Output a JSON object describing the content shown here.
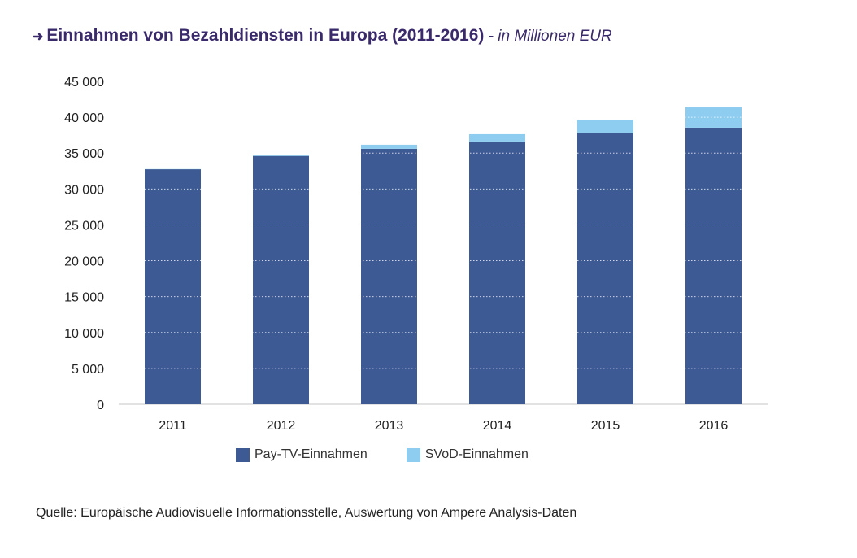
{
  "title": {
    "arrow": "➜",
    "main": "Einnahmen von Bezahldiensten in Europa (2011-2016)",
    "subtitle": " - in Millionen EUR"
  },
  "colors": {
    "pay_tv": "#3d5a94",
    "svod": "#8ecdf0",
    "title": "#3a2a6b",
    "gridline": "#d9d9d9"
  },
  "chart_data": {
    "type": "bar",
    "stacked": true,
    "title": "Einnahmen von Bezahldiensten in Europa (2011-2016) - in Millionen EUR",
    "xlabel": "",
    "ylabel": "",
    "categories": [
      "2011",
      "2012",
      "2013",
      "2014",
      "2015",
      "2016"
    ],
    "series": [
      {
        "name": "Pay-TV-Einnahmen",
        "color": "#3d5a94",
        "values": [
          32750,
          34600,
          35600,
          36620,
          37760,
          38550
        ]
      },
      {
        "name": "SVoD-Einnahmen",
        "color": "#8ecdf0",
        "values": [
          30,
          100,
          570,
          1020,
          1810,
          2830
        ]
      }
    ],
    "ylim": [
      0,
      45000
    ],
    "yticks": [
      0,
      5000,
      10000,
      15000,
      20000,
      25000,
      30000,
      35000,
      40000,
      45000
    ],
    "ytick_labels": [
      "0",
      "5 000",
      "10 000",
      "15 000",
      "20 000",
      "25 000",
      "30 000",
      "35 000",
      "40 000",
      "45 000"
    ],
    "grid": "dotted white lines over bars",
    "legend": "bottom-center"
  },
  "legend": {
    "items": [
      {
        "label": "Pay-TV-Einnahmen"
      },
      {
        "label": "SVoD-Einnahmen"
      }
    ]
  },
  "source": "Quelle: Europäische Audiovisuelle Informationsstelle, Auswertung von Ampere Analysis-Daten"
}
